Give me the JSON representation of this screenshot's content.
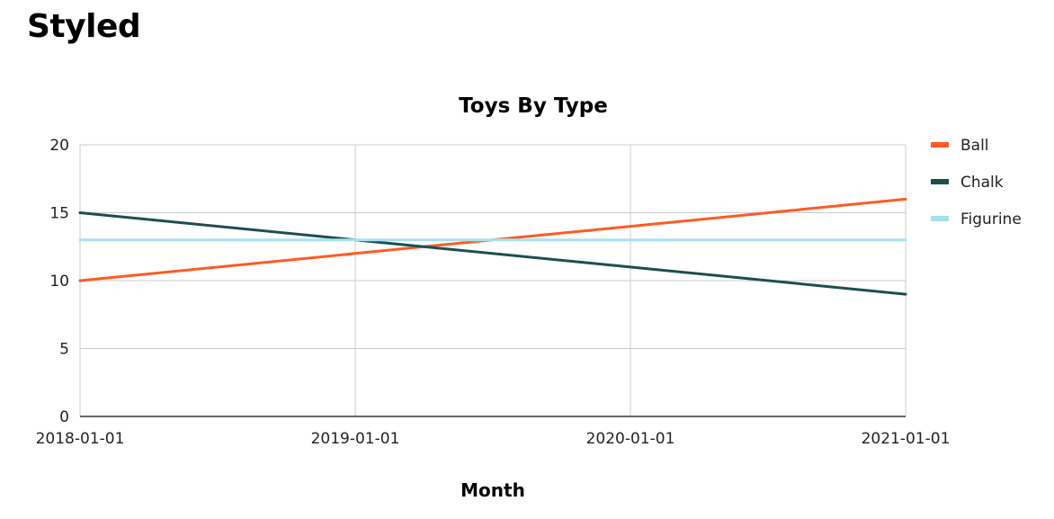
{
  "page": {
    "heading": "Styled"
  },
  "chart_data": {
    "type": "line",
    "title": "Toys By Type",
    "xlabel": "Month",
    "ylabel": "",
    "x": [
      "2018-01-01",
      "2019-01-01",
      "2020-01-01",
      "2021-01-01"
    ],
    "ylim": [
      0,
      20
    ],
    "yticks": [
      0,
      5,
      10,
      15,
      20
    ],
    "grid": true,
    "legend_position": "right",
    "series": [
      {
        "name": "Ball",
        "color": "#ff5b22",
        "values": [
          10,
          12,
          14,
          16
        ]
      },
      {
        "name": "Chalk",
        "color": "#1d4e4f",
        "values": [
          15,
          13,
          11,
          9
        ]
      },
      {
        "name": "Figurine",
        "color": "#a6e2ee",
        "values": [
          13,
          13,
          13,
          13
        ]
      }
    ]
  }
}
